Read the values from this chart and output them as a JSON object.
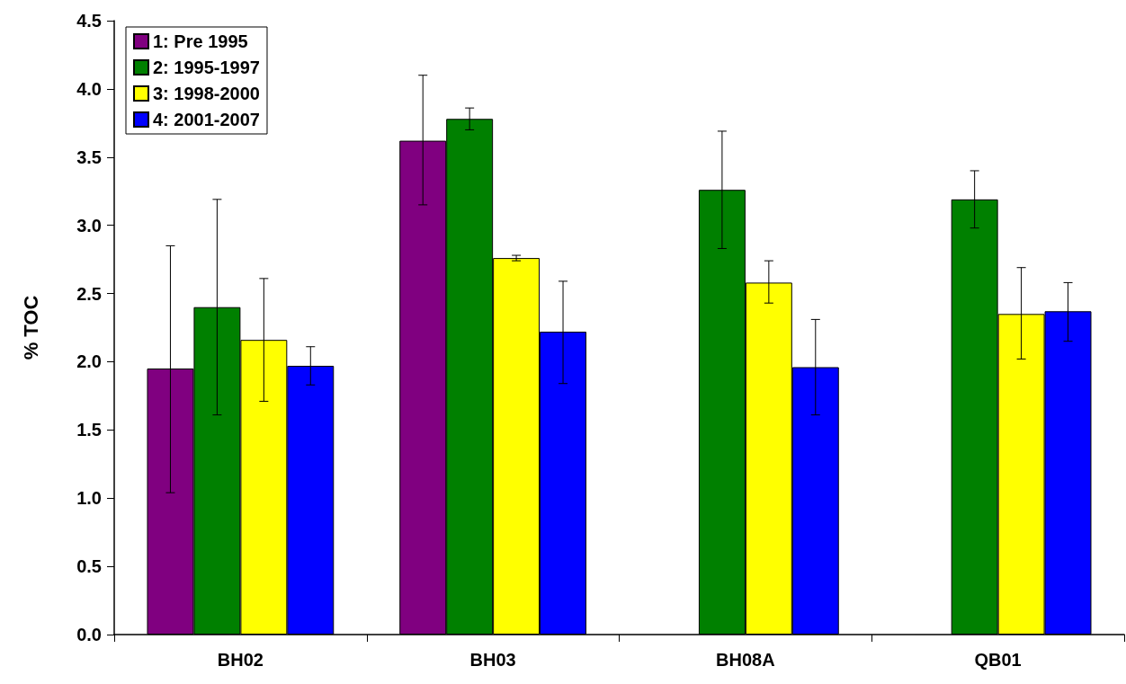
{
  "chart_data": {
    "type": "bar",
    "ylabel": "% TOC",
    "categories": [
      "BH02",
      "BH03",
      "BH08A",
      "QB01"
    ],
    "ylim": [
      0,
      4.5
    ],
    "yticks": [
      {
        "value": 0,
        "label": "0.0"
      },
      {
        "value": 0.5,
        "label": "0.5"
      },
      {
        "value": 1,
        "label": "1.0"
      },
      {
        "value": 1.5,
        "label": "1.5"
      },
      {
        "value": 2,
        "label": "2.0"
      },
      {
        "value": 2.5,
        "label": "2.5"
      },
      {
        "value": 3,
        "label": "3.0"
      },
      {
        "value": 3.5,
        "label": "3.5"
      },
      {
        "value": 4,
        "label": "4.0"
      },
      {
        "value": 4.5,
        "label": "4.5"
      }
    ],
    "grid": false,
    "legend": "top left",
    "series": [
      {
        "name": "1: Pre 1995",
        "color": "#800080",
        "values": [
          1.95,
          3.62,
          null,
          null
        ],
        "errors": [
          [
            1.04,
            2.85
          ],
          [
            3.15,
            4.1
          ],
          null,
          null
        ]
      },
      {
        "name": "2: 1995-1997",
        "color": "#008000",
        "values": [
          2.4,
          3.78,
          3.26,
          3.19
        ],
        "errors": [
          [
            1.61,
            3.19
          ],
          [
            3.7,
            3.86
          ],
          [
            2.83,
            3.69
          ],
          [
            2.98,
            3.4
          ]
        ]
      },
      {
        "name": "3: 1998-2000",
        "color": "#ffff00",
        "values": [
          2.16,
          2.76,
          2.58,
          2.35
        ],
        "errors": [
          [
            1.71,
            2.61
          ],
          [
            2.74,
            2.78
          ],
          [
            2.43,
            2.74
          ],
          [
            2.02,
            2.69
          ]
        ]
      },
      {
        "name": "4: 2001-2007",
        "color": "#0000ff",
        "values": [
          1.97,
          2.22,
          1.96,
          2.37
        ],
        "errors": [
          [
            1.83,
            2.11
          ],
          [
            1.84,
            2.59
          ],
          [
            1.61,
            2.31
          ],
          [
            2.15,
            2.58
          ]
        ]
      }
    ]
  }
}
